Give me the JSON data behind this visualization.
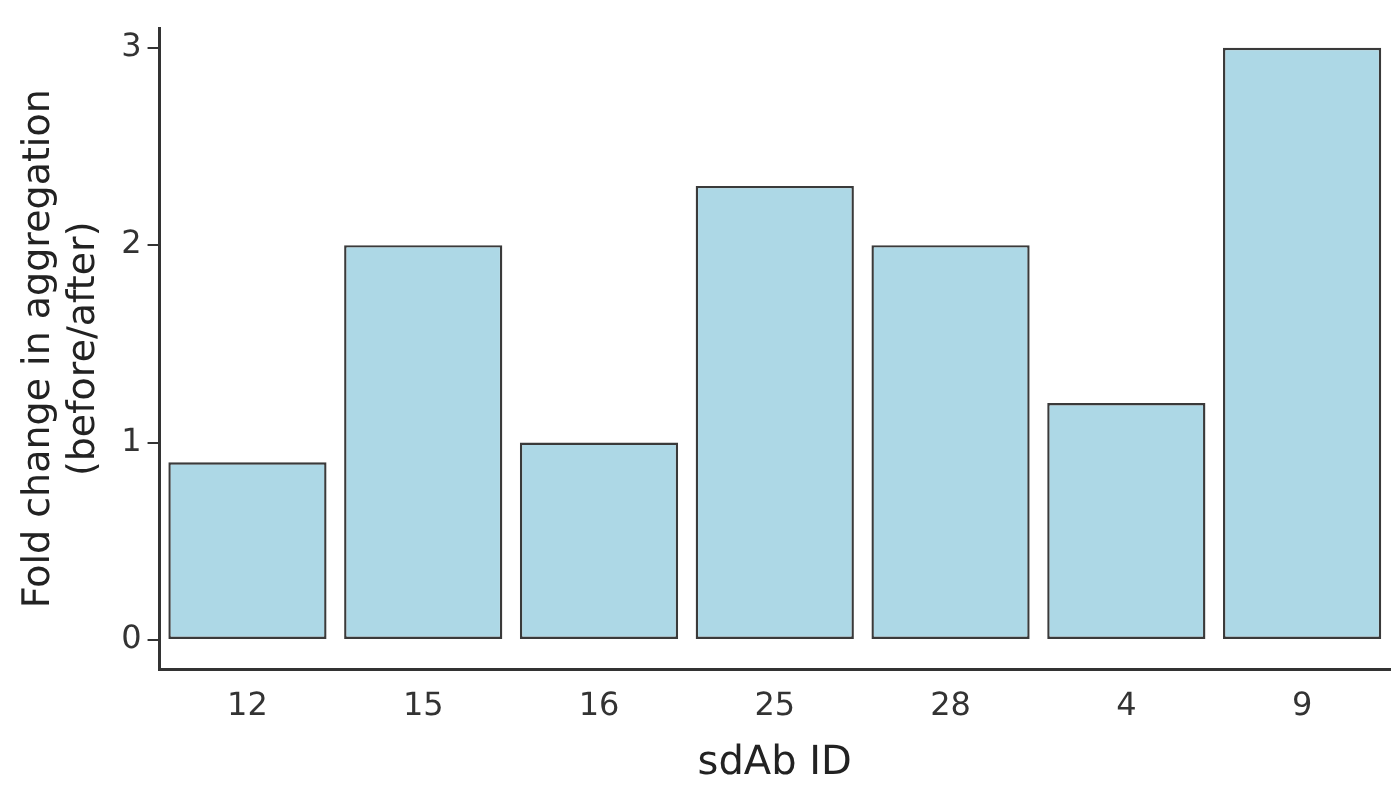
{
  "chart_data": {
    "type": "bar",
    "xlabel": "sdAb ID",
    "ylabel": "Fold change in aggregation\n(before/after)",
    "categories": [
      "12",
      "15",
      "16",
      "25",
      "28",
      "4",
      "9"
    ],
    "values": [
      0.9,
      2.0,
      1.0,
      2.3,
      2.0,
      1.2,
      3.0
    ],
    "color": "#add8e6",
    "ylim": [
      -0.15,
      3.1
    ],
    "yticks": [
      0,
      1,
      2,
      3
    ],
    "grid": false,
    "legend": false
  }
}
